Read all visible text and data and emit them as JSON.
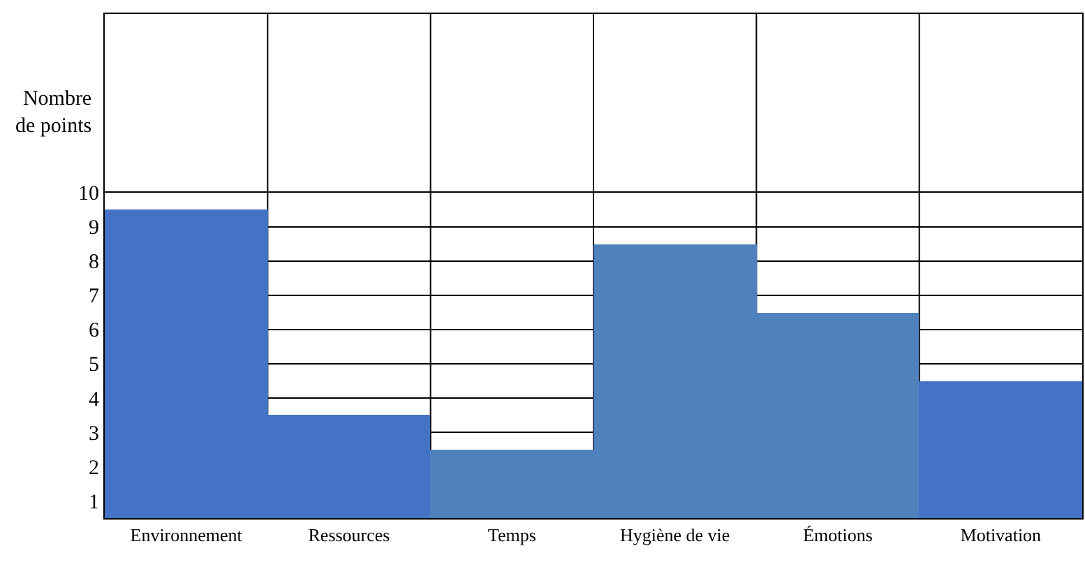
{
  "chart_data": {
    "type": "bar",
    "ylabel": "Nombre de points",
    "categories": [
      "Environnement",
      "Ressources",
      "Temps",
      "Hygiène de vie",
      "Émotions",
      "Motivation"
    ],
    "values": [
      9.5,
      3.5,
      2.5,
      8.5,
      6.5,
      4.5
    ],
    "colors": [
      "#4472c4",
      "#4472c4",
      "#4f81bd",
      "#4f81bd",
      "#4f81bd",
      "#4472c4"
    ],
    "ylim": [
      0.5,
      15.2
    ],
    "yticks": [
      1,
      2,
      3,
      4,
      5,
      6,
      7,
      8,
      9,
      10
    ],
    "grid": true
  }
}
